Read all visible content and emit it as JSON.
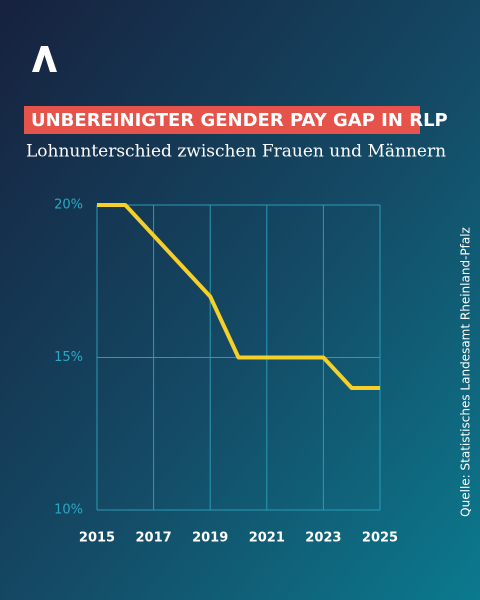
{
  "chart_data": {
    "type": "line",
    "title": "UNBEREINIGTER GENDER PAY GAP IN RLP",
    "subtitle": "Lohnunterschied zwischen Frauen und Männern",
    "source": "Quelle: Statistisches Landesamt Rheinland-Pfalz",
    "x": [
      2015,
      2016,
      2017,
      2018,
      2019,
      2020,
      2021,
      2022,
      2023,
      2024,
      2025
    ],
    "series": [
      {
        "name": "Gender Pay Gap",
        "color": "#f5d02a",
        "values": [
          20,
          20,
          19,
          18,
          17,
          15,
          15,
          15,
          15,
          14,
          14
        ]
      }
    ],
    "xlim": [
      2015,
      2025
    ],
    "xticks": [
      2015,
      2017,
      2019,
      2021,
      2023,
      2025
    ],
    "ylim": [
      10,
      20
    ],
    "yticks": [
      {
        "value": 10,
        "label": "10%"
      },
      {
        "value": 15,
        "label": "15%"
      },
      {
        "value": 20,
        "label": "20%"
      }
    ],
    "grid": true
  }
}
